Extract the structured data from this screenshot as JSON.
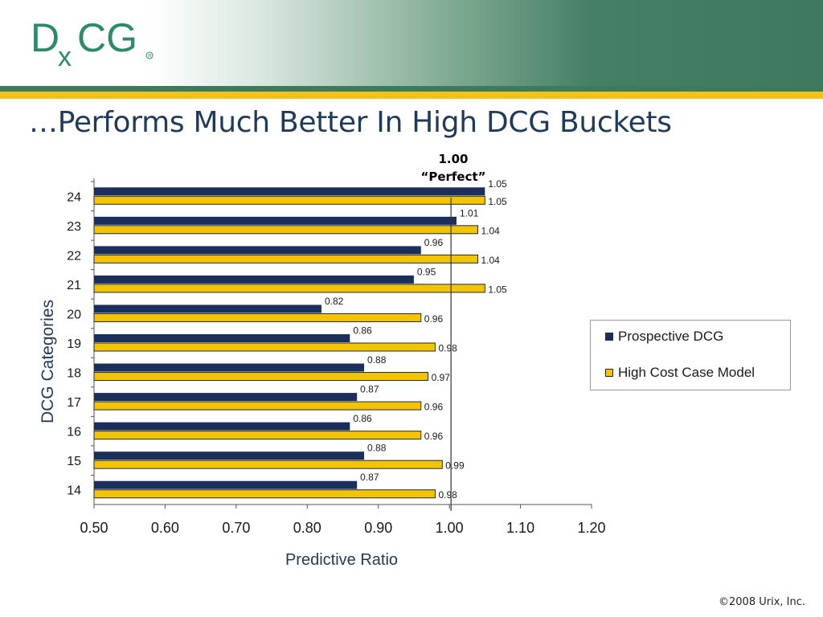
{
  "slide": {
    "logo_text": "DxCG",
    "title": "…Performs Much Better In High DCG Buckets",
    "perfect_value": "1.00",
    "perfect_label": "“Perfect”",
    "copyright": "©2008 Urix, Inc."
  },
  "colors": {
    "brand_green": "#2a8a6a",
    "header_green": "#3d7a5e",
    "gold_rule": "#f3c21a",
    "series_prospective": "#1b2f5a",
    "series_highcost": "#f5c400",
    "title_text": "#1f3a5a"
  },
  "chart_data": {
    "type": "bar",
    "orientation": "horizontal",
    "categories": [
      "24",
      "23",
      "22",
      "21",
      "20",
      "19",
      "18",
      "17",
      "16",
      "15",
      "14"
    ],
    "series": [
      {
        "name": "Prospective DCG",
        "color": "#1b2f5a",
        "values": [
          1.05,
          1.01,
          0.96,
          0.95,
          0.82,
          0.86,
          0.88,
          0.87,
          0.86,
          0.88,
          0.87
        ]
      },
      {
        "name": "High Cost Case Model",
        "color": "#f5c400",
        "values": [
          1.05,
          1.04,
          1.04,
          1.05,
          0.96,
          0.98,
          0.97,
          0.96,
          0.96,
          0.99,
          0.98
        ]
      }
    ],
    "data_labels": {
      "Prospective DCG": [
        "1.05",
        "1.01",
        "0.96",
        "0.95",
        "0.82",
        "0.86",
        "0.88",
        "0.87",
        "0.86",
        "0.88",
        "0.87"
      ],
      "High Cost Case Model": [
        "1.05",
        "1.04",
        "1.04",
        "1.05",
        "0.96",
        "0.98",
        "0.97",
        "0.96",
        "0.96",
        "0.99",
        "0.98"
      ]
    },
    "xlabel": "Predictive Ratio",
    "ylabel": "DCG Categories",
    "xlim": [
      0.5,
      1.2
    ],
    "xticks": [
      "0.50",
      "0.60",
      "0.70",
      "0.80",
      "0.90",
      "1.00",
      "1.10",
      "1.20"
    ],
    "reference_line": 1.0,
    "grid": false,
    "legend_position": "right"
  }
}
